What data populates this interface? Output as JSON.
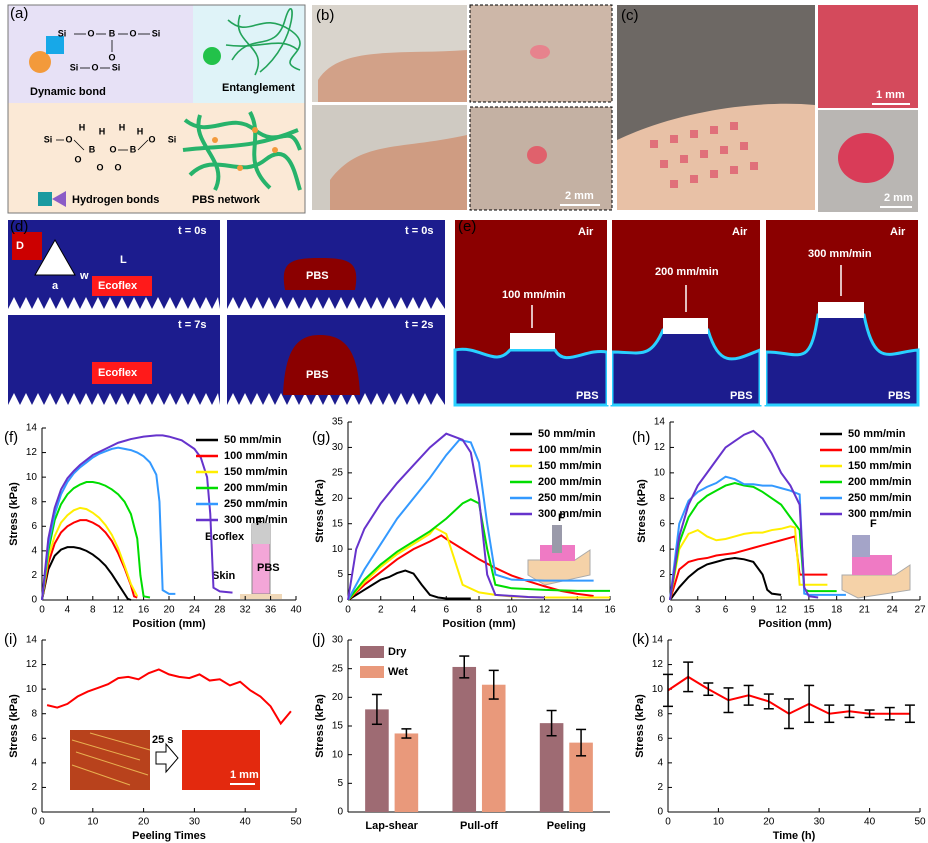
{
  "panels": {
    "a": {
      "label": "(a)",
      "dynamic_bond": "Dynamic bond",
      "entanglement": "Entanglement",
      "hydrogen_bonds": "Hydrogen bonds",
      "pbs_network": "PBS network",
      "chem": [
        "Si",
        "O",
        "B",
        "O",
        "Si",
        "O",
        "Si",
        "O",
        "Si",
        "Si",
        "O",
        "B",
        "O",
        "H",
        "H",
        "O",
        "O",
        "H",
        "H",
        "O",
        "B",
        "O",
        "Si"
      ]
    },
    "b": {
      "label": "(b)",
      "scale": "2 mm"
    },
    "c": {
      "label": "(c)",
      "scale_top": "1 mm",
      "scale_bottom": "2 mm"
    },
    "d": {
      "label": "(d)",
      "times": [
        "t = 0s",
        "t = 0s",
        "t = 7s",
        "t = 2s"
      ],
      "ecoflex": [
        "Ecoflex",
        "Ecoflex"
      ],
      "pbs": [
        "PBS",
        "PBS"
      ],
      "dims": [
        "D",
        "w",
        "L",
        "a"
      ]
    },
    "e": {
      "label": "(e)",
      "air": [
        "Air",
        "Air",
        "Air"
      ],
      "pbs": [
        "PBS",
        "PBS",
        "PBS"
      ],
      "speeds": [
        "100 mm/min",
        "200 mm/min",
        "300 mm/min"
      ]
    }
  },
  "chart_data": [
    {
      "type": "line",
      "label": "(f)",
      "xlabel": "Position (mm)",
      "ylabel": "Stress (kPa)",
      "xlim": [
        0,
        40
      ],
      "xticks": [
        0,
        4,
        8,
        12,
        16,
        20,
        24,
        28,
        32,
        36,
        40
      ],
      "ylim": [
        0,
        14
      ],
      "yticks": [
        0,
        2,
        4,
        6,
        8,
        10,
        12,
        14
      ],
      "legend": "upper right",
      "annotations": [
        "Ecoflex",
        "PBS",
        "Skin",
        "F"
      ],
      "series": [
        {
          "name": "50 mm/min",
          "color": "#000000",
          "x": [
            0,
            1,
            2,
            3,
            4,
            5,
            6,
            7,
            8,
            9,
            10,
            11,
            12,
            13,
            13.5,
            14
          ],
          "values": [
            0,
            2.5,
            3.6,
            4.1,
            4.3,
            4.3,
            4.2,
            4.0,
            3.7,
            3.3,
            2.8,
            2.1,
            1.3,
            0.5,
            0.1,
            0
          ]
        },
        {
          "name": "100 mm/min",
          "color": "#ff0000",
          "x": [
            0,
            1,
            2,
            3,
            4,
            5,
            6,
            7,
            8,
            9,
            10,
            11,
            12,
            13,
            14,
            14.5,
            15
          ],
          "values": [
            0,
            3,
            4.6,
            5.5,
            6.0,
            6.3,
            6.5,
            6.5,
            6.3,
            6.0,
            5.5,
            4.8,
            3.8,
            2.6,
            1.2,
            0.3,
            0.2
          ]
        },
        {
          "name": "150 mm/min",
          "color": "#ffee00",
          "x": [
            0,
            1,
            2,
            3,
            4,
            5,
            6,
            7,
            8,
            9,
            10,
            11,
            12,
            13,
            14,
            15
          ],
          "values": [
            0,
            3.5,
            5.2,
            6.3,
            6.9,
            7.3,
            7.5,
            7.4,
            7.1,
            6.7,
            6.1,
            5.3,
            4.2,
            2.8,
            1.3,
            0.3
          ]
        },
        {
          "name": "200 mm/min",
          "color": "#00dd00",
          "x": [
            0,
            1,
            2,
            3,
            4,
            5,
            6,
            7,
            8,
            9,
            10,
            11,
            12,
            13,
            14,
            15,
            15.5,
            16,
            17
          ],
          "values": [
            0,
            4,
            6.5,
            7.8,
            8.6,
            9.1,
            9.4,
            9.6,
            9.6,
            9.5,
            9.3,
            9.0,
            8.6,
            8.0,
            7,
            5,
            2,
            0.3,
            0.2
          ]
        },
        {
          "name": "250 mm/min",
          "color": "#3399ff",
          "x": [
            0,
            1,
            2,
            3,
            4,
            5,
            6,
            7,
            8,
            9,
            10,
            11,
            12,
            13,
            14,
            15,
            16,
            17,
            18,
            18.5,
            19,
            20,
            21
          ],
          "values": [
            0,
            4.5,
            7,
            8.6,
            9.6,
            10.3,
            10.8,
            11.2,
            11.6,
            11.9,
            12.1,
            12.3,
            12.4,
            12.3,
            12.2,
            12.0,
            11.7,
            11.2,
            10.2,
            8,
            0.8,
            0.5,
            0.5
          ]
        },
        {
          "name": "300 mm/min",
          "color": "#6633cc",
          "x": [
            0,
            1,
            2,
            3,
            4,
            5,
            6,
            8,
            10,
            12,
            14,
            16,
            18,
            19,
            20,
            22,
            24,
            25,
            26,
            26.5,
            27,
            28,
            30
          ],
          "values": [
            0,
            5,
            7.5,
            9,
            9.9,
            10.5,
            11,
            11.8,
            12.3,
            12.8,
            13.1,
            13.3,
            13.4,
            13.4,
            13.3,
            13.0,
            12.3,
            11.6,
            10,
            7,
            1,
            0.7,
            0.6
          ]
        }
      ]
    },
    {
      "type": "line",
      "label": "(g)",
      "xlabel": "Position (mm)",
      "ylabel": "Stress (kPa)",
      "xlim": [
        0,
        16
      ],
      "xticks": [
        0,
        2,
        4,
        6,
        8,
        10,
        12,
        14,
        16
      ],
      "ylim": [
        0,
        35
      ],
      "yticks": [
        0,
        5,
        10,
        15,
        20,
        25,
        30,
        35
      ],
      "legend": "upper right",
      "annotations": [
        "F"
      ],
      "series": [
        {
          "name": "50 mm/min",
          "color": "#000000",
          "x": [
            0,
            0.5,
            1,
            1.5,
            2,
            2.5,
            3,
            3.5,
            4,
            4.5,
            5,
            5.5,
            6,
            7,
            7.5
          ],
          "values": [
            0,
            1,
            2,
            3,
            4,
            4.5,
            5.3,
            5.8,
            5.2,
            3,
            1,
            0.5,
            0.3,
            0.3,
            0.3
          ]
        },
        {
          "name": "100 mm/min",
          "color": "#ff0000",
          "x": [
            0,
            1,
            2,
            3,
            4,
            5,
            5.7,
            6,
            7,
            8,
            9,
            10,
            11,
            12,
            13,
            14,
            15
          ],
          "values": [
            0,
            3,
            5.5,
            8,
            10,
            11.5,
            12.7,
            12,
            10,
            8,
            6.3,
            4.8,
            3.7,
            2.7,
            1.8,
            1.2,
            0.8
          ]
        },
        {
          "name": "150 mm/min",
          "color": "#ffee00",
          "x": [
            0,
            1,
            2,
            3,
            4,
            5,
            5.3,
            6,
            6.5,
            7,
            8,
            9,
            10,
            12,
            14,
            16
          ],
          "values": [
            0,
            3.5,
            6.5,
            9,
            11,
            13,
            14.2,
            13,
            8,
            3,
            1.5,
            1,
            0.7,
            0.5,
            0.5,
            0.5
          ]
        },
        {
          "name": "200 mm/min",
          "color": "#00dd00",
          "x": [
            0,
            1,
            2,
            3,
            4,
            5,
            6,
            7,
            7.5,
            8,
            8.5,
            9,
            10,
            12,
            14,
            16
          ],
          "values": [
            0,
            4,
            7,
            9.5,
            11.5,
            13.5,
            16,
            19,
            19.8,
            19,
            10,
            3,
            2.3,
            2,
            1.8,
            1.8
          ]
        },
        {
          "name": "250 mm/min",
          "color": "#3399ff",
          "x": [
            0,
            1,
            2,
            3,
            4,
            5,
            6,
            6.8,
            7.5,
            8,
            8.5,
            9,
            10,
            12,
            14,
            15
          ],
          "values": [
            0,
            6,
            11,
            16,
            20,
            24,
            28.5,
            31.5,
            31,
            27,
            15,
            5,
            4,
            3.8,
            3.8,
            3.8
          ]
        },
        {
          "name": "300 mm/min",
          "color": "#6633cc",
          "x": [
            0,
            0.5,
            1,
            2,
            3,
            4,
            5,
            6,
            7,
            7.5,
            8,
            8.5,
            9,
            10,
            11,
            12
          ],
          "values": [
            0,
            10,
            14,
            19,
            23,
            26.5,
            30,
            32.7,
            31.5,
            29,
            20,
            5,
            1,
            0.8,
            0.6,
            0.5
          ]
        }
      ]
    },
    {
      "type": "line",
      "label": "(h)",
      "xlabel": "Position (mm)",
      "ylabel": "Stress (kPa)",
      "xlim": [
        0,
        27
      ],
      "xticks": [
        0,
        3,
        6,
        9,
        12,
        15,
        18,
        21,
        24,
        27
      ],
      "ylim": [
        0,
        14
      ],
      "yticks": [
        0,
        2,
        4,
        6,
        8,
        10,
        12,
        14
      ],
      "legend": "upper right",
      "annotations": [
        "F"
      ],
      "series": [
        {
          "name": "50 mm/min",
          "color": "#000000",
          "x": [
            0,
            1,
            2,
            3,
            4,
            5,
            6,
            7,
            8,
            9,
            10,
            10.5,
            11,
            12
          ],
          "values": [
            0,
            1,
            1.8,
            2.4,
            2.8,
            3.0,
            3.2,
            3.3,
            3.2,
            3.0,
            2.0,
            0.8,
            0.5,
            0.4
          ]
        },
        {
          "name": "100 mm/min",
          "color": "#ff0000",
          "x": [
            0,
            1,
            2,
            3,
            4,
            5,
            6,
            7,
            8,
            9,
            10,
            11,
            12,
            13,
            13.5,
            14,
            15,
            17
          ],
          "values": [
            0,
            2.4,
            3.0,
            3.2,
            3.3,
            3.5,
            3.6,
            3.7,
            3.9,
            4.1,
            4.3,
            4.5,
            4.7,
            4.9,
            5,
            2,
            2,
            2
          ]
        },
        {
          "name": "150 mm/min",
          "color": "#ffee00",
          "x": [
            0,
            1,
            2,
            3,
            4,
            5,
            6,
            7,
            8,
            9,
            10,
            11,
            12,
            13,
            13.5,
            14,
            15,
            17
          ],
          "values": [
            0,
            4,
            5.2,
            5.5,
            5.0,
            4.7,
            4.8,
            5.0,
            5.2,
            5.3,
            5.3,
            5.5,
            5.6,
            5.8,
            5.7,
            1.2,
            1.2,
            1.2
          ]
        },
        {
          "name": "200 mm/min",
          "color": "#00dd00",
          "x": [
            0,
            1,
            2,
            3,
            4,
            5,
            6,
            7,
            8,
            9,
            10,
            11,
            12,
            13,
            14,
            14.5,
            15,
            17,
            18
          ],
          "values": [
            0,
            4.5,
            6.5,
            7.6,
            8.2,
            8.6,
            9.0,
            9.2,
            9.0,
            8.9,
            8.5,
            8.0,
            7.5,
            6.5,
            5.5,
            0.8,
            0.7,
            0.7,
            0.7
          ]
        },
        {
          "name": "250 mm/min",
          "color": "#3399ff",
          "x": [
            0,
            1,
            2,
            3,
            4,
            5,
            6,
            7,
            8,
            9,
            10,
            11,
            12,
            13,
            14,
            14.5,
            15,
            17,
            19
          ],
          "values": [
            0,
            6,
            7.8,
            8.5,
            8.9,
            9.2,
            9.7,
            9.5,
            9.1,
            9.1,
            9.0,
            9.0,
            8.8,
            8.6,
            8.3,
            0.5,
            0.4,
            0.4,
            0.4
          ]
        },
        {
          "name": "300 mm/min",
          "color": "#6633cc",
          "x": [
            0,
            1,
            2,
            3,
            4,
            5,
            6,
            7,
            8,
            9,
            10,
            11,
            12,
            13,
            14,
            14.5,
            15,
            16
          ],
          "values": [
            0,
            5,
            7.5,
            9,
            10,
            11,
            12,
            12.5,
            13,
            13.3,
            12.7,
            11.5,
            10,
            9,
            7.5,
            1,
            0.3,
            0.2
          ]
        }
      ]
    },
    {
      "type": "line",
      "label": "(i)",
      "xlabel": "Peeling Times",
      "ylabel": "Stress (kPa)",
      "xlim": [
        0,
        50
      ],
      "xticks": [
        0,
        10,
        20,
        30,
        40,
        50
      ],
      "ylim": [
        0,
        14
      ],
      "yticks": [
        0,
        2,
        4,
        6,
        8,
        10,
        12,
        14
      ],
      "annotations": [
        "25 s",
        "1 mm"
      ],
      "series": [
        {
          "name": null,
          "color": "#ff0000",
          "x": [
            1,
            3,
            5,
            7,
            9,
            11,
            13,
            15,
            17,
            19,
            21,
            23,
            25,
            27,
            29,
            31,
            33,
            35,
            37,
            39,
            41,
            43,
            45,
            47,
            49
          ],
          "values": [
            8.7,
            8.5,
            8.8,
            9.4,
            9.8,
            10.1,
            10.4,
            10.9,
            11.0,
            10.8,
            11.3,
            11.6,
            11.2,
            11.0,
            10.9,
            11.2,
            10.7,
            10.8,
            10.3,
            10.6,
            9.9,
            9.4,
            8.6,
            7.2,
            8.2
          ]
        }
      ]
    },
    {
      "type": "bar",
      "label": "(j)",
      "ylabel": "Stress (kPa)",
      "categories": [
        "Lap-shear",
        "Pull-off",
        "Peeling"
      ],
      "ylim": [
        0,
        30
      ],
      "yticks": [
        0,
        5,
        10,
        15,
        20,
        25,
        30
      ],
      "legend": "upper left",
      "series": [
        {
          "name": "Dry",
          "color": "#9e6b73",
          "values": [
            17.9,
            25.3,
            15.5
          ],
          "errors": [
            2.6,
            1.9,
            2.2
          ],
          "error_color": "#000000"
        },
        {
          "name": "Wet",
          "color": "#e9997b",
          "values": [
            13.7,
            22.2,
            12.1
          ],
          "errors": [
            0.8,
            2.5,
            2.3
          ],
          "error_color": "#000000"
        }
      ]
    },
    {
      "type": "line",
      "label": "(k)",
      "xlabel": "Time (h)",
      "ylabel": "Stress (kPa)",
      "xlim": [
        0,
        50
      ],
      "xticks": [
        0,
        10,
        20,
        30,
        40,
        50
      ],
      "ylim": [
        0,
        14
      ],
      "yticks": [
        0,
        2,
        4,
        6,
        8,
        10,
        12,
        14
      ],
      "series": [
        {
          "name": null,
          "color": "#ff0000",
          "error_color": "#000000",
          "x": [
            0,
            4,
            8,
            12,
            16,
            20,
            24,
            28,
            32,
            36,
            40,
            44,
            48
          ],
          "values": [
            9.9,
            11.0,
            10.0,
            9.1,
            9.5,
            9.0,
            8.0,
            8.8,
            8.0,
            8.2,
            8.0,
            8.0,
            8.0
          ],
          "errors": [
            1.3,
            1.2,
            0.5,
            1.0,
            0.8,
            0.6,
            1.2,
            1.5,
            0.7,
            0.5,
            0.3,
            0.5,
            0.7
          ]
        }
      ]
    }
  ]
}
